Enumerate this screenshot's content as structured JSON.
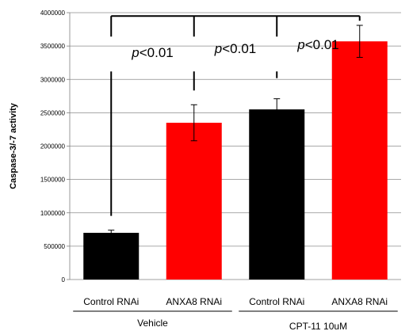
{
  "chart_data": {
    "type": "bar",
    "ylabel": "Caspase-3/-7 activity",
    "ylim": [
      0,
      4000000
    ],
    "yticks": [
      0,
      500000,
      1000000,
      1500000,
      2000000,
      2500000,
      3000000,
      3500000,
      4000000
    ],
    "ytick_labels": [
      "0",
      "500000",
      "1000000",
      "1500000",
      "2000000",
      "2500000",
      "3000000",
      "3500000",
      "4000000"
    ],
    "grid": true,
    "categories": [
      "Control RNAi",
      "ANXA8 RNAi",
      "Control RNAi",
      "ANXA8 RNAi"
    ],
    "values": [
      700000,
      2350000,
      2550000,
      3570000
    ],
    "errors": [
      40000,
      270000,
      160000,
      240000
    ],
    "colors": [
      "#000000",
      "#ff0000",
      "#000000",
      "#ff0000"
    ],
    "groups": [
      {
        "label": "Vehicle",
        "categories": [
          0,
          1
        ]
      },
      {
        "label": "CPT-11  10uM",
        "categories": [
          2,
          3
        ]
      }
    ],
    "annotations": [
      {
        "from": 0,
        "to": 1,
        "prefix": "p",
        "text": "<0.01"
      },
      {
        "from": 1,
        "to": 2,
        "prefix": "p",
        "text": "<0.01"
      },
      {
        "from": 2,
        "to": 3,
        "prefix": "p",
        "text": "<0.01"
      }
    ],
    "comparison_bracket": {
      "from": 0,
      "to": 3,
      "top_value": 3950000
    }
  }
}
